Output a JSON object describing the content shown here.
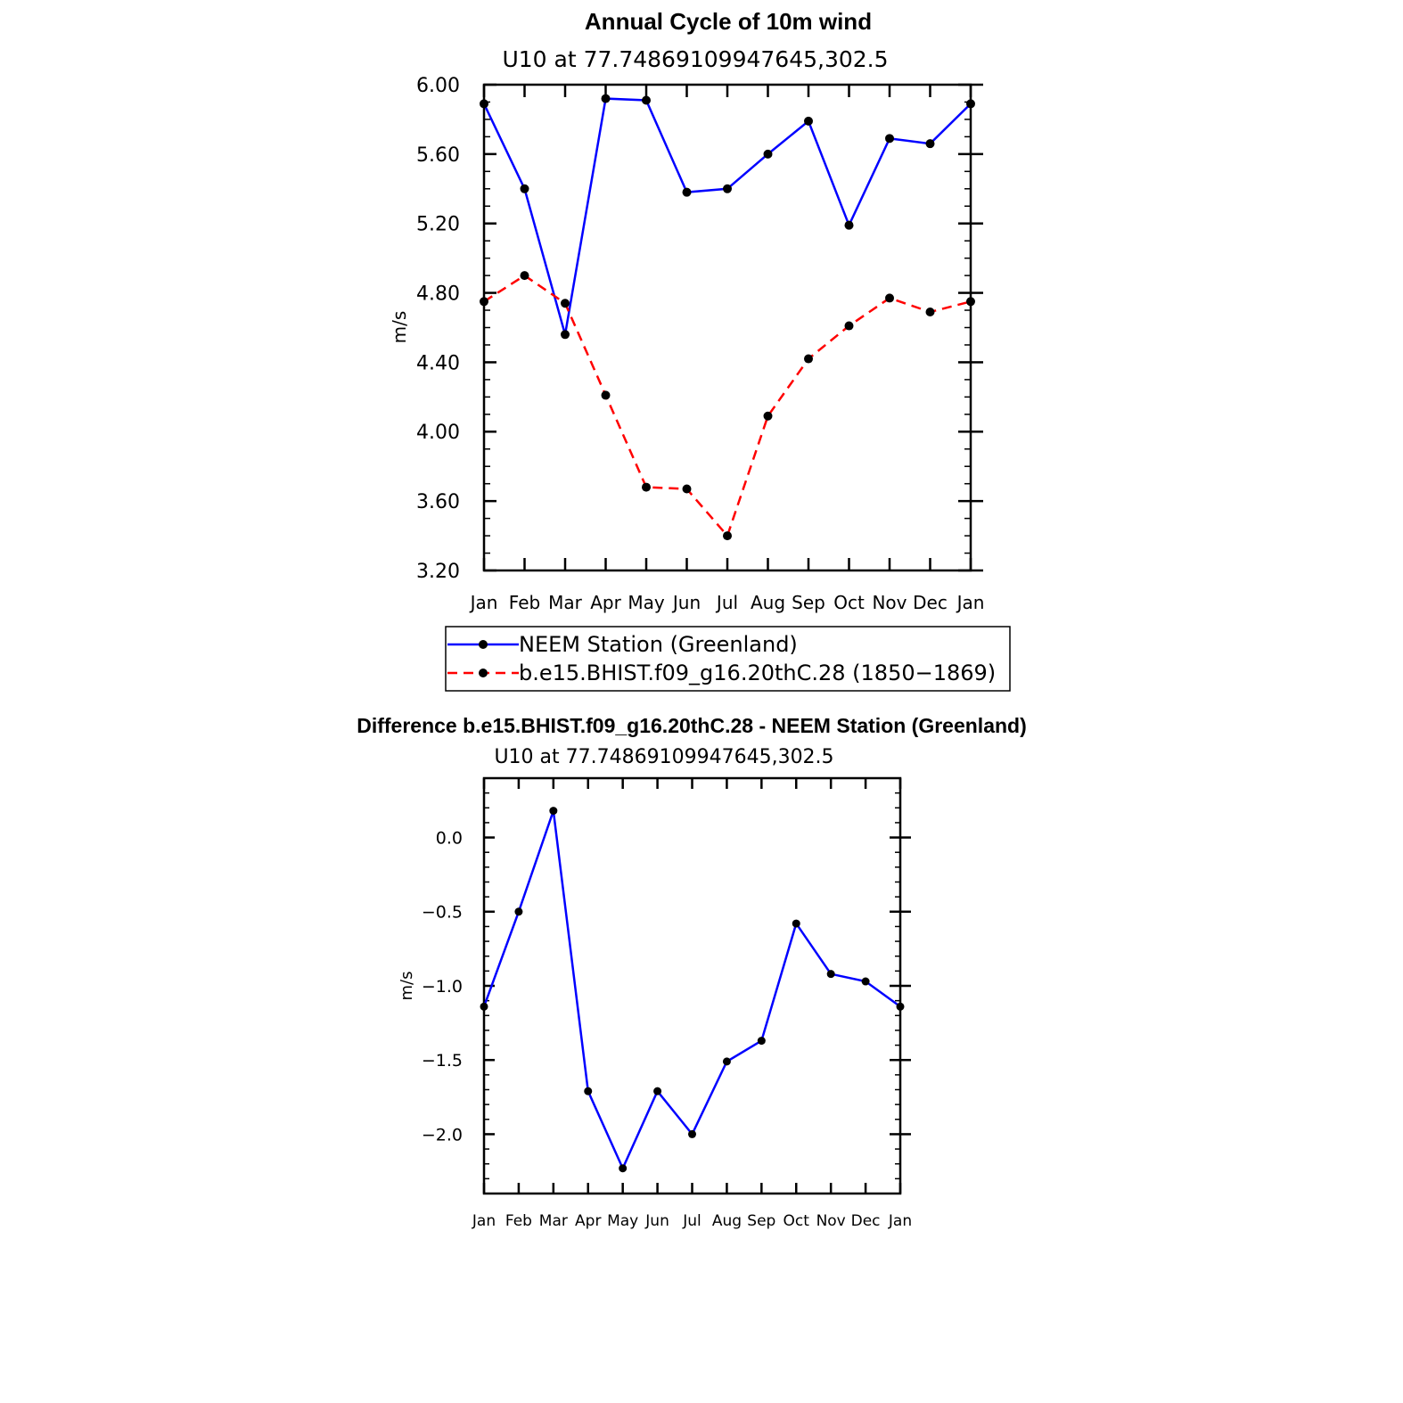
{
  "chart_data": [
    {
      "type": "line",
      "title": "Annual Cycle of 10m wind",
      "subtitle": "U10 at 77.74869109947645,302.5",
      "xlabel": "",
      "ylabel": "m/s",
      "categories": [
        "Jan",
        "Feb",
        "Mar",
        "Apr",
        "May",
        "Jun",
        "Jul",
        "Aug",
        "Sep",
        "Oct",
        "Nov",
        "Dec",
        "Jan"
      ],
      "ylim": [
        3.2,
        6.0
      ],
      "yticks": [
        "3.20",
        "3.60",
        "4.00",
        "4.40",
        "4.80",
        "5.20",
        "5.60",
        "6.00"
      ],
      "grid": false,
      "legend": "bottom",
      "series": [
        {
          "name": "NEEM Station (Greenland)",
          "color": "#0000ff",
          "dash": "solid",
          "values": [
            5.89,
            5.4,
            4.56,
            5.92,
            5.91,
            5.38,
            5.4,
            5.6,
            5.79,
            5.19,
            5.69,
            5.66,
            5.89
          ]
        },
        {
          "name": "b.e15.BHIST.f09_g16.20thC.28 (1850−1869)",
          "color": "#ff0000",
          "dash": "dashed",
          "values": [
            4.75,
            4.9,
            4.74,
            4.21,
            3.68,
            3.67,
            3.4,
            4.09,
            4.42,
            4.61,
            4.77,
            4.69,
            4.75
          ]
        }
      ]
    },
    {
      "type": "line",
      "title": "Difference b.e15.BHIST.f09_g16.20thC.28 - NEEM Station (Greenland)",
      "subtitle": "U10 at 77.74869109947645,302.5",
      "xlabel": "",
      "ylabel": "m/s",
      "categories": [
        "Jan",
        "Feb",
        "Mar",
        "Apr",
        "May",
        "Jun",
        "Jul",
        "Aug",
        "Sep",
        "Oct",
        "Nov",
        "Dec",
        "Jan"
      ],
      "ylim": [
        -2.4,
        0.4
      ],
      "yticks": [
        "−2.0",
        "−1.5",
        "−1.0",
        "−0.5",
        "0.0"
      ],
      "grid": false,
      "series": [
        {
          "name": "",
          "color": "#0000ff",
          "dash": "solid",
          "values": [
            -1.14,
            -0.5,
            0.18,
            -1.71,
            -2.23,
            -1.71,
            -2.0,
            -1.51,
            -1.37,
            -0.58,
            -0.92,
            -0.97,
            -1.14
          ]
        }
      ]
    }
  ]
}
